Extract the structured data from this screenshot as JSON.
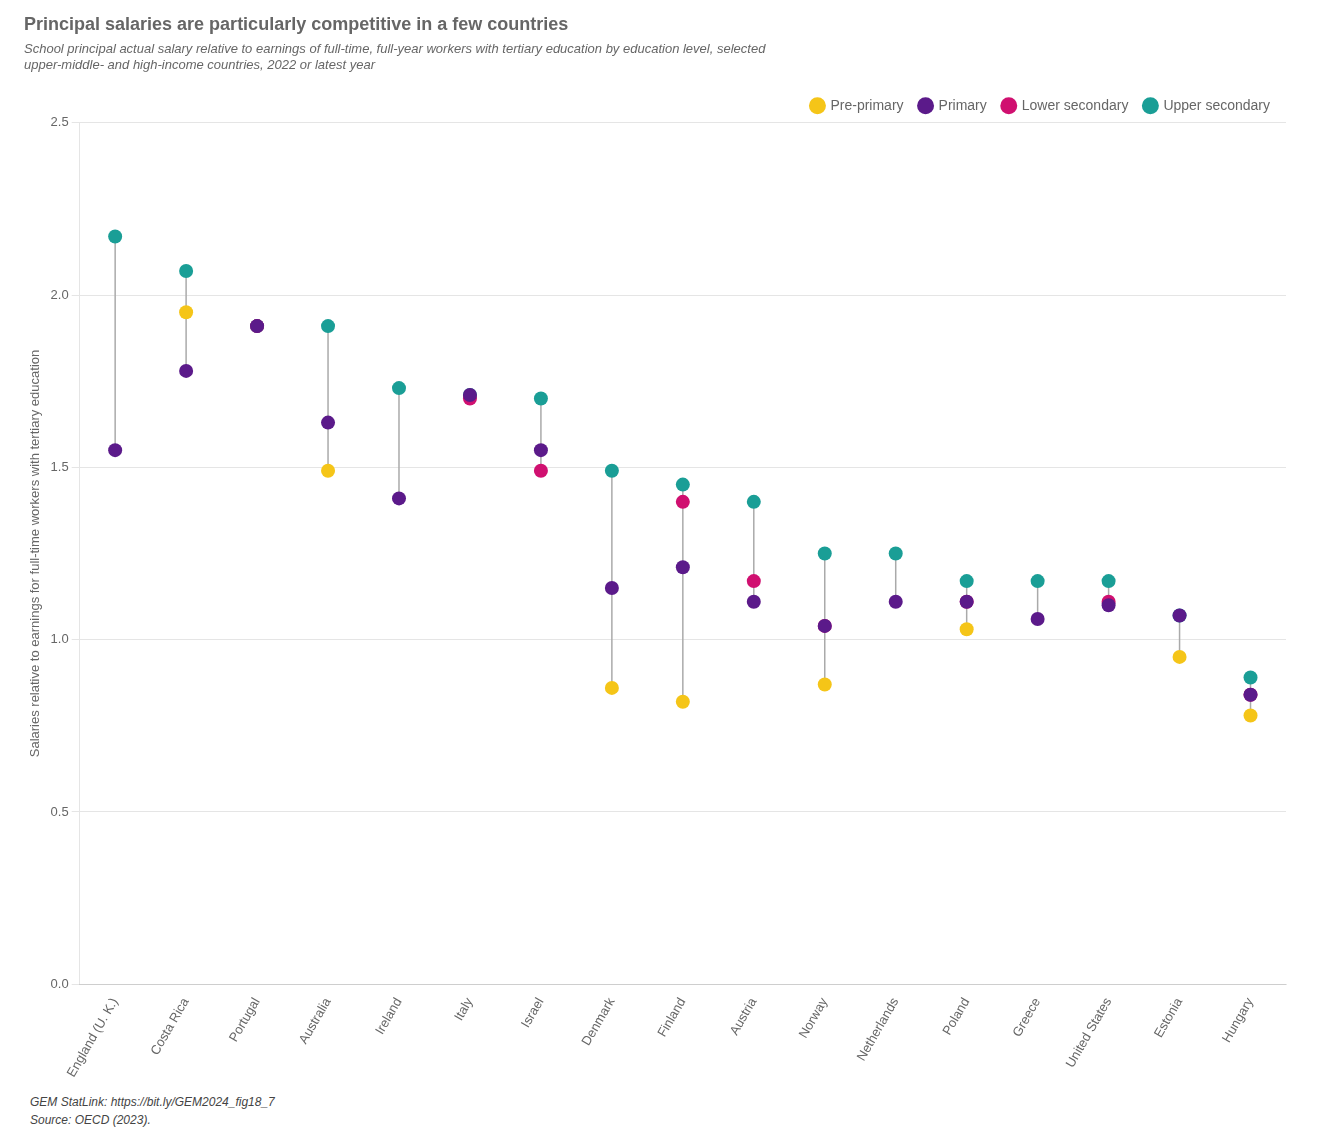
{
  "chart_data": {
    "type": "scatter",
    "title": "Principal salaries are particularly competitive in a few countries",
    "subtitle": "School principal actual salary relative to earnings of full-time, full-year workers with tertiary education by education level, selected\nupper-middle- and high-income countries, 2022 or latest year",
    "ylabel": "Salaries relative to earnings for full-time workers with tertiary education",
    "annotations": [
      "GEM StatLink: https://bit.ly/GEM2024_fig18_7",
      "Source: OECD (2023)."
    ],
    "categories": [
      "England (U. K.)",
      "Costa Rica",
      "Portugal",
      "Australia",
      "Ireland",
      "Italy",
      "Israel",
      "Denmark",
      "Finland",
      "Austria",
      "Norway",
      "Netherlands",
      "Poland",
      "Greece",
      "United States",
      "Estonia",
      "Hungary"
    ],
    "series": [
      {
        "name": "Pre-primary",
        "color": "#F5C518",
        "values": [
          null,
          1.95,
          null,
          1.49,
          null,
          null,
          null,
          0.86,
          0.82,
          null,
          0.87,
          null,
          1.03,
          null,
          null,
          0.95,
          0.78
        ]
      },
      {
        "name": "Primary",
        "color": "#5B1A8A",
        "values": [
          1.55,
          1.78,
          1.91,
          1.63,
          1.41,
          1.71,
          1.55,
          1.15,
          1.21,
          1.11,
          1.04,
          1.11,
          1.11,
          1.06,
          1.1,
          1.07,
          0.84
        ]
      },
      {
        "name": "Lower secondary",
        "color": "#D01070",
        "values": [
          null,
          null,
          1.91,
          null,
          null,
          1.7,
          1.49,
          null,
          1.4,
          1.17,
          1.04,
          null,
          1.11,
          null,
          1.11,
          null,
          0.84
        ]
      },
      {
        "name": "Upper secondary",
        "color": "#1A9E96",
        "values": [
          2.17,
          2.07,
          1.91,
          1.91,
          1.73,
          1.71,
          1.7,
          1.49,
          1.45,
          1.4,
          1.25,
          1.25,
          1.17,
          1.17,
          1.17,
          1.07,
          0.89
        ]
      }
    ],
    "ylim": [
      0.0,
      2.5
    ],
    "yticks": [
      {
        "value": 0.0,
        "label": "0.0"
      },
      0.5,
      {
        "value": 1.0,
        "label": "1.0"
      },
      1.5,
      {
        "value": 2.0,
        "label": "2.0"
      },
      2.5
    ],
    "grid": true,
    "legend": "upper right",
    "marker": "circle"
  }
}
